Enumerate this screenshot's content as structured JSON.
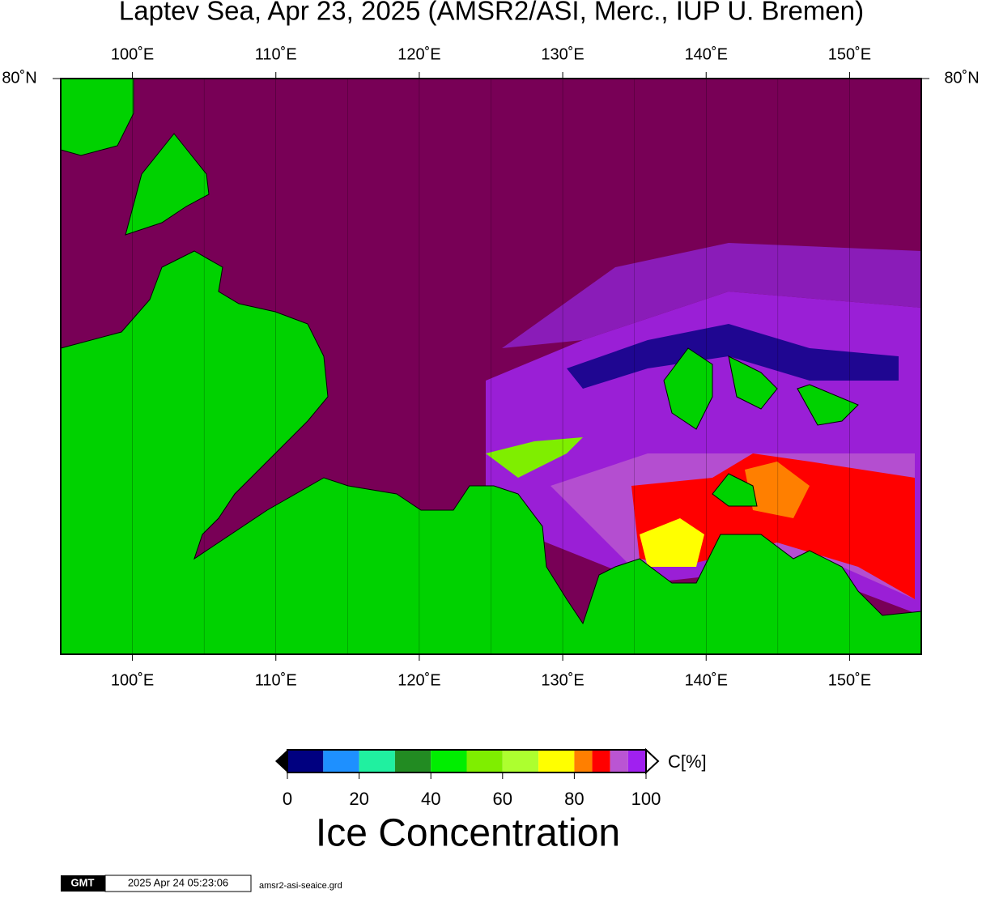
{
  "title": "Laptev Sea, Apr 23, 2025 (AMSR2/ASI, Merc., IUP U. Bremen)",
  "map": {
    "xlim": [
      95,
      155
    ],
    "xticks": [
      {
        "value": 100,
        "label": "100˚E"
      },
      {
        "value": 110,
        "label": "110˚E"
      },
      {
        "value": 120,
        "label": "120˚E"
      },
      {
        "value": 130,
        "label": "130˚E"
      },
      {
        "value": 140,
        "label": "140˚E"
      },
      {
        "value": 150,
        "label": "150˚E"
      }
    ],
    "minor_grid": [
      105,
      115,
      125,
      135,
      145
    ],
    "lat_label": "80˚N"
  },
  "colorbar": {
    "title": "Ice Concentration",
    "unit": "C[%]",
    "bounds": [
      0,
      10,
      20,
      30,
      40,
      50,
      60,
      70,
      80,
      85,
      90,
      95,
      100
    ],
    "colors": [
      "#000080",
      "#1e90ff",
      "#20f0a0",
      "#228b22",
      "#00ee00",
      "#7fee00",
      "#adff2f",
      "#ffff00",
      "#ff7f00",
      "#ff0000",
      "#ba55d3",
      "#a020f0"
    ],
    "xlim": [
      0,
      100
    ],
    "ticks": [
      0,
      20,
      40,
      60,
      80,
      100
    ]
  },
  "footer": {
    "logo": "GMT",
    "timestamp": "2025 Apr 24 05:23:06",
    "file": "amsr2-asi-seaice.grd"
  }
}
